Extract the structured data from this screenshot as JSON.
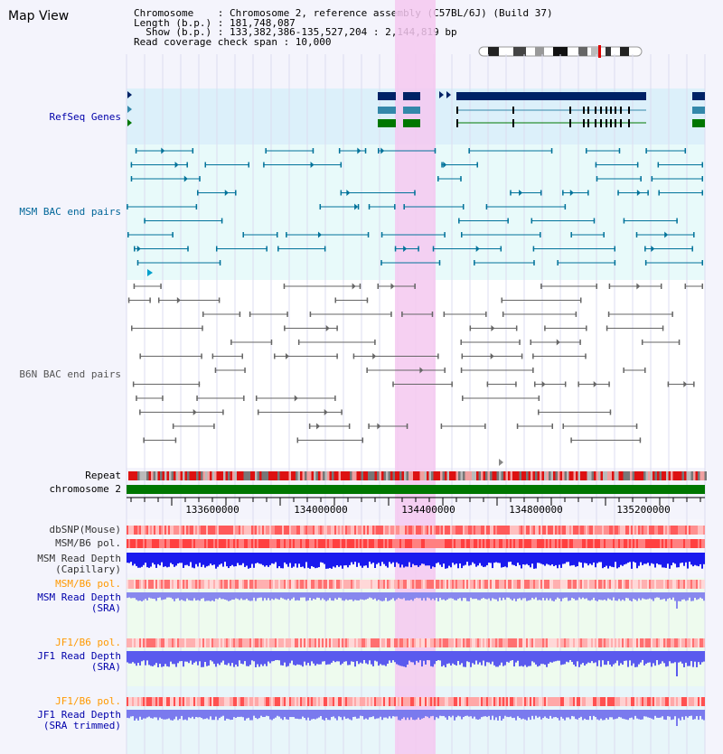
{
  "window": {
    "title": "Map View"
  },
  "info": {
    "chromosome_line": "Chromosome    : Chromosome 2, reference assembly (C57BL/6J) (Build 37)",
    "length_line": "Length (b.p.) : 181,748,087",
    "show_line": "  Show (b.p.) : 133,382,386-135,527,204 : 2,144,819 bp",
    "coverage_line": "Read coverage check span : 10,000"
  },
  "tracks": {
    "refseq": {
      "label": "RefSeq Genes",
      "color": "#0000aa"
    },
    "msm_bac": {
      "label": "MSM BAC end pairs",
      "color": "#006699"
    },
    "b6n_bac": {
      "label": "B6N BAC end pairs",
      "color": "#555555"
    },
    "repeat": {
      "label": "Repeat"
    },
    "chromosome": {
      "label": "chromosome 2"
    },
    "dbsnp": {
      "label": "dbSNP(Mouse)"
    },
    "msm_b6_pol_1": {
      "label": "MSM/B6 pol."
    },
    "msm_read_depth_cap": {
      "label": "MSM Read Depth\n(Capillary)"
    },
    "msm_b6_pol_2": {
      "label": "MSM/B6 pol.",
      "color": "#ff9900"
    },
    "msm_read_depth_sra": {
      "label": "MSM Read Depth\n(SRA)",
      "color": "#0000aa"
    },
    "jf1_b6_pol_1": {
      "label": "JF1/B6 pol.",
      "color": "#ff9900"
    },
    "jf1_read_depth_sra": {
      "label": "JF1 Read Depth\n(SRA)",
      "color": "#0000aa"
    },
    "jf1_b6_pol_2": {
      "label": "JF1/B6 pol.",
      "color": "#ff9900"
    },
    "jf1_read_depth_trim": {
      "label": "JF1 Read Depth\n(SRA trimmed)",
      "color": "#0000aa"
    }
  },
  "axis": {
    "ticks": [
      "133600000",
      "134000000",
      "134400000",
      "134800000",
      "135200000"
    ]
  },
  "colors": {
    "highlight": "#f5c8f0",
    "gene_dark": "#002266",
    "gene_mid": "#3388aa",
    "gene_green": "#007700",
    "chrom_green": "#007700"
  }
}
